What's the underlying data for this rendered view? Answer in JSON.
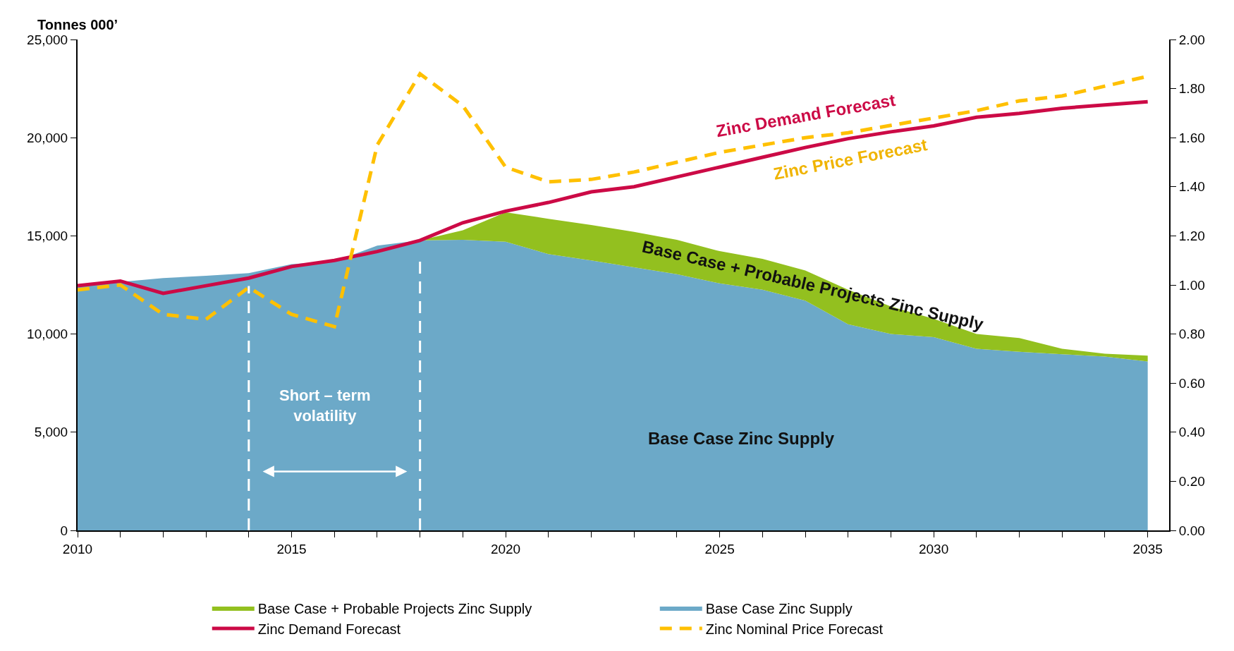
{
  "chart_data": {
    "type": "area",
    "ylabel": "Tonnes 000’",
    "x": [
      2010,
      2011,
      2012,
      2013,
      2014,
      2015,
      2016,
      2017,
      2018,
      2019,
      2020,
      2021,
      2022,
      2023,
      2024,
      2025,
      2026,
      2027,
      2028,
      2029,
      2030,
      2031,
      2032,
      2033,
      2034,
      2035
    ],
    "stacked": true,
    "series": [
      {
        "name": "Base Case Zinc Supply",
        "color": "#6ca9c8",
        "values": [
          12400,
          12650,
          12850,
          12970,
          13100,
          13560,
          13700,
          14500,
          14770,
          14800,
          14700,
          14070,
          13750,
          13400,
          13050,
          12580,
          12260,
          11700,
          10500,
          10000,
          9840,
          9250,
          9100,
          8970,
          8850,
          8600
        ]
      },
      {
        "name": "Base Case + Probable Projects Zinc Supply",
        "color": "#93c01f",
        "values": [
          0,
          0,
          0,
          0,
          0,
          0,
          0,
          0,
          0,
          480,
          1500,
          1800,
          1800,
          1800,
          1750,
          1640,
          1570,
          1540,
          1760,
          1400,
          940,
          750,
          700,
          280,
          150,
          300
        ]
      },
      {
        "name": "Zinc Demand Forecast",
        "type": "line",
        "color": "#cc0a46",
        "line_style": "solid",
        "values": [
          12460,
          12700,
          12070,
          12460,
          12850,
          13440,
          13750,
          14200,
          14770,
          15670,
          16260,
          16700,
          17240,
          17500,
          18000,
          18500,
          19000,
          19500,
          19950,
          20300,
          20600,
          21040,
          21240,
          21500,
          21670,
          21830
        ]
      },
      {
        "name": "Zinc Nominal Price Forecast",
        "type": "line",
        "color": "#ffc000",
        "line_style": "dashed",
        "axis": "y2",
        "values": [
          0.98,
          1.0,
          0.88,
          0.86,
          0.99,
          0.88,
          0.83,
          1.57,
          1.86,
          1.73,
          1.48,
          1.42,
          1.43,
          1.46,
          1.5,
          1.54,
          1.57,
          1.6,
          1.62,
          1.65,
          1.68,
          1.71,
          1.75,
          1.77,
          1.81,
          1.85
        ]
      }
    ],
    "xlim": [
      2010,
      2035.5
    ],
    "xticks": [
      2010,
      {
        "value": 2011,
        "label": null
      },
      {
        "value": 2012,
        "label": null
      },
      {
        "value": 2013,
        "label": null
      },
      {
        "value": 2014,
        "label": null
      },
      2015,
      {
        "value": 2016,
        "label": null
      },
      {
        "value": 2017,
        "label": null
      },
      {
        "value": 2018,
        "label": null
      },
      {
        "value": 2019,
        "label": null
      },
      2020,
      {
        "value": 2021,
        "label": null
      },
      {
        "value": 2022,
        "label": null
      },
      {
        "value": 2023,
        "label": null
      },
      {
        "value": 2024,
        "label": null
      },
      2025,
      {
        "value": 2026,
        "label": null
      },
      {
        "value": 2027,
        "label": null
      },
      {
        "value": 2028,
        "label": null
      },
      {
        "value": 2029,
        "label": null
      },
      2030,
      {
        "value": 2031,
        "label": null
      },
      {
        "value": 2032,
        "label": null
      },
      {
        "value": 2033,
        "label": null
      },
      {
        "value": 2034,
        "label": null
      },
      2035
    ],
    "ylim": [
      0,
      25000
    ],
    "yticks": [
      0,
      {
        "value": 5000,
        "label": "5,000"
      },
      {
        "value": 10000,
        "label": "10,000"
      },
      {
        "value": 15000,
        "label": "15,000"
      },
      {
        "value": 20000,
        "label": "20,000"
      },
      {
        "value": 25000,
        "label": "25,000"
      }
    ],
    "y2lim": [
      0,
      2
    ],
    "y2ticks": [
      {
        "value": 0,
        "label": "0.00"
      },
      {
        "value": 0.2,
        "label": "0.20"
      },
      {
        "value": 0.4,
        "label": "0.40"
      },
      {
        "value": 0.6,
        "label": "0.60"
      },
      {
        "value": 0.8,
        "label": "0.80"
      },
      {
        "value": 1.0,
        "label": "1.00"
      },
      {
        "value": 1.2,
        "label": "1.20"
      },
      {
        "value": 1.4,
        "label": "1.40"
      },
      {
        "value": 1.6,
        "label": "1.60"
      },
      {
        "value": 1.8,
        "label": "1.80"
      },
      {
        "value": 2.0,
        "label": "2.00"
      }
    ],
    "ref_lines": [
      {
        "axis": "x",
        "value": 2014,
        "color": "#ffffff",
        "line_style": "dashed"
      },
      {
        "axis": "x",
        "value": 2018,
        "color": "#ffffff",
        "line_style": "dashed"
      }
    ],
    "annotations": [
      "Zinc Demand Forecast",
      "Zinc Price Forecast",
      "Base Case + Probable Projects Zinc Supply",
      "Base Case Zinc Supply",
      "Short – term\nvolatility"
    ],
    "legend": "bottom"
  }
}
